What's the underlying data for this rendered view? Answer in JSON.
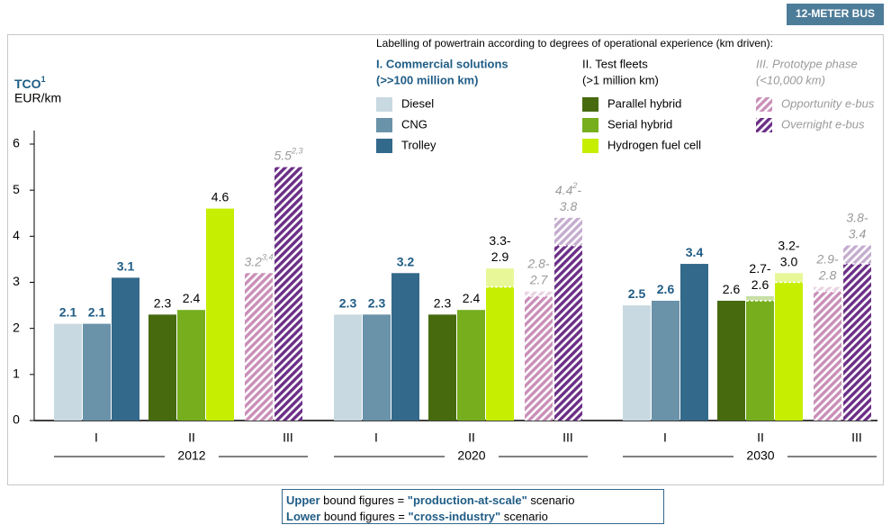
{
  "chart_data": {
    "type": "bar",
    "badge": "12-METER BUS",
    "title": "TCO",
    "title_sup": "1",
    "unit": "EUR/km",
    "ylim": [
      0,
      6
    ],
    "yticks": [
      0,
      1,
      2,
      3,
      4,
      5,
      6
    ],
    "legend_title": "Labelling of powertrain according to degrees of operational experience (km driven):",
    "legend_groups": [
      {
        "title": "I. Commercial solutions",
        "subtitle": "(>>100 million km)",
        "label_color": "#1f5c85"
      },
      {
        "title": "II. Test fleets",
        "subtitle": "(>1 million km)",
        "label_color": "#000000"
      },
      {
        "title": "III. Prototype phase",
        "subtitle": "(<10,000 km)",
        "label_color": "#9a9a9a"
      }
    ],
    "years": [
      "2012",
      "2020",
      "2030"
    ],
    "phases": [
      "I",
      "II",
      "III"
    ],
    "range_sep": "-",
    "series": [
      {
        "name": "Diesel",
        "color": "#c9d9e1",
        "group": 0,
        "values": [
          2.1,
          2.3,
          2.5
        ]
      },
      {
        "name": "CNG",
        "color": "#6a92a9",
        "group": 0,
        "values": [
          2.1,
          2.3,
          2.6
        ]
      },
      {
        "name": "Trolley",
        "color": "#33698b",
        "group": 0,
        "values": [
          3.1,
          3.2,
          3.4
        ]
      },
      {
        "name": "Parallel hybrid",
        "color": "#476a0e",
        "group": 1,
        "values": [
          2.3,
          2.3,
          2.6
        ]
      },
      {
        "name": "Serial hybrid",
        "color": "#76ae1e",
        "group": 1,
        "values": [
          2.4,
          2.4,
          2.6
        ],
        "upper": [
          null,
          null,
          2.7
        ]
      },
      {
        "name": "Hydrogen fuel cell",
        "color": "#c6ee00",
        "group": 1,
        "values": [
          4.6,
          2.9,
          3.0
        ],
        "value_labels": [
          "4.6",
          "2.9",
          "3.0"
        ],
        "upper": [
          null,
          3.3,
          3.2
        ]
      },
      {
        "name": "Opportunity e-bus",
        "color": "#c98fb8",
        "group": 2,
        "pattern": "hatch",
        "values": [
          3.2,
          2.7,
          2.8
        ],
        "value_sup": [
          "3,4",
          null,
          null
        ],
        "upper": [
          null,
          2.8,
          2.9
        ]
      },
      {
        "name": "Overnight e-bus",
        "color": "#6b2f86",
        "group": 2,
        "pattern": "hatch",
        "values": [
          5.5,
          3.8,
          3.4
        ],
        "value_sup": [
          "2,3",
          null,
          null
        ],
        "upper": [
          null,
          4.4,
          3.8
        ],
        "upper_sup": [
          null,
          "2",
          null
        ]
      }
    ],
    "note": [
      [
        {
          "text": "Upper",
          "bold": true
        },
        {
          "text": " bound figures = "
        },
        {
          "text": "\"production-at-scale\"",
          "bold": true
        },
        {
          "text": " scenario"
        }
      ],
      [
        {
          "text": "Lower",
          "bold": true
        },
        {
          "text": " bound figures = "
        },
        {
          "text": "\"cross-industry\"",
          "bold": true
        },
        {
          "text": " scenario"
        }
      ]
    ]
  }
}
